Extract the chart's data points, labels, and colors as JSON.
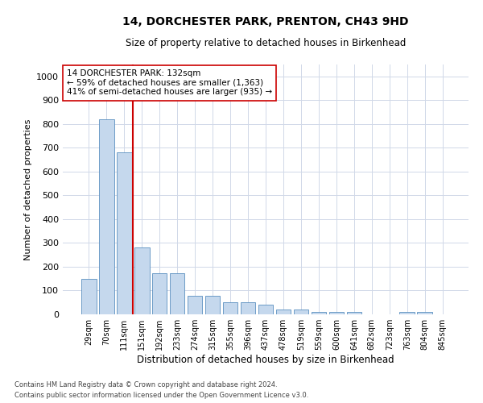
{
  "title": "14, DORCHESTER PARK, PRENTON, CH43 9HD",
  "subtitle": "Size of property relative to detached houses in Birkenhead",
  "xlabel": "Distribution of detached houses by size in Birkenhead",
  "ylabel": "Number of detached properties",
  "categories": [
    "29sqm",
    "70sqm",
    "111sqm",
    "151sqm",
    "192sqm",
    "233sqm",
    "274sqm",
    "315sqm",
    "355sqm",
    "396sqm",
    "437sqm",
    "478sqm",
    "519sqm",
    "559sqm",
    "600sqm",
    "641sqm",
    "682sqm",
    "723sqm",
    "763sqm",
    "804sqm",
    "845sqm"
  ],
  "values": [
    148,
    820,
    680,
    282,
    172,
    172,
    78,
    78,
    50,
    50,
    40,
    22,
    22,
    10,
    10,
    10,
    0,
    0,
    10,
    10,
    0
  ],
  "bar_color": "#c5d8ed",
  "bar_edge_color": "#5a8fc0",
  "vline_x": 2.5,
  "vline_color": "#cc0000",
  "annotation_text": "14 DORCHESTER PARK: 132sqm\n← 59% of detached houses are smaller (1,363)\n41% of semi-detached houses are larger (935) →",
  "annotation_box_color": "#ffffff",
  "annotation_box_edge": "#cc0000",
  "ylim": [
    0,
    1050
  ],
  "yticks": [
    0,
    100,
    200,
    300,
    400,
    500,
    600,
    700,
    800,
    900,
    1000
  ],
  "footer1": "Contains HM Land Registry data © Crown copyright and database right 2024.",
  "footer2": "Contains public sector information licensed under the Open Government Licence v3.0.",
  "bg_color": "#ffffff",
  "grid_color": "#d0d8e8"
}
